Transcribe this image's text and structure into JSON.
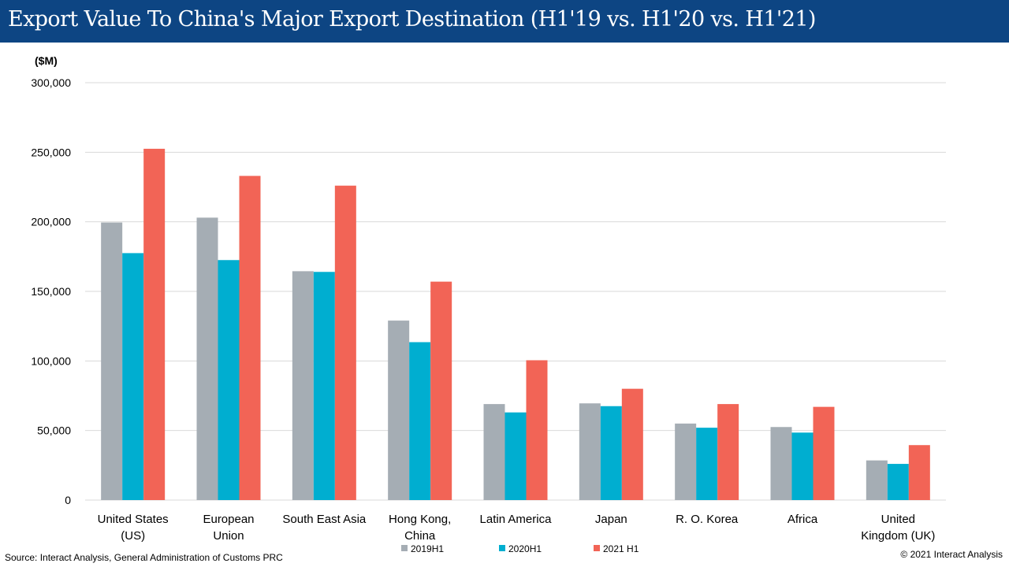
{
  "title": "Export Value To China's Major Export Destination (H1'19 vs. H1'20 vs. H1'21)",
  "unit_label": "($M)",
  "source": "Source: Interact Analysis, General Administration of Customs PRC",
  "copyright": "© 2021 Interact Analysis",
  "colors": {
    "header_bg": "#0d4583",
    "series": [
      "#a5adb4",
      "#00aed0",
      "#f26456"
    ],
    "grid": "#d9d9d9"
  },
  "chart_data": {
    "type": "bar",
    "categories": [
      [
        "United States",
        "(US)"
      ],
      [
        "European",
        "Union"
      ],
      [
        "South East Asia"
      ],
      [
        "Hong Kong,",
        "China"
      ],
      [
        "Latin America"
      ],
      [
        "Japan"
      ],
      [
        "R. O. Korea"
      ],
      [
        "Africa"
      ],
      [
        "United",
        "Kingdom (UK)"
      ]
    ],
    "series": [
      {
        "name": "2019H1",
        "values": [
          199500,
          203000,
          164500,
          129000,
          69000,
          69500,
          55000,
          52500,
          28500
        ]
      },
      {
        "name": "2020H1",
        "values": [
          177500,
          172500,
          164000,
          113500,
          63000,
          67500,
          52000,
          48500,
          26000
        ]
      },
      {
        "name": "2021 H1",
        "values": [
          252500,
          233000,
          226000,
          157000,
          100500,
          80000,
          69000,
          67000,
          39500
        ]
      }
    ],
    "ylim": [
      0,
      300000
    ],
    "yticks": [
      "0",
      "50,000",
      "100,000",
      "150,000",
      "200,000",
      "250,000",
      "300,000"
    ],
    "ytick_values": [
      0,
      50000,
      100000,
      150000,
      200000,
      250000,
      300000
    ],
    "grid": true,
    "legend_position": "bottom"
  }
}
